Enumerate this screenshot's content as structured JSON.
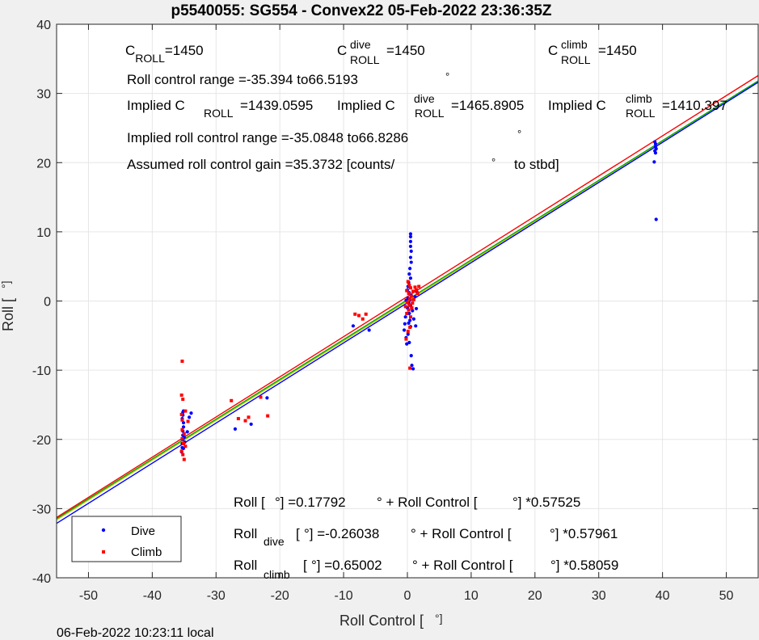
{
  "title": "p5540055: SG554 - Convex22 05-Feb-2022 23:36:35Z",
  "footer": "06-Feb-2022 10:23:11 local",
  "chart_data": {
    "type": "scatter",
    "title": "p5540055: SG554 - Convex22 05-Feb-2022 23:36:35Z",
    "xlabel": "Roll Control [",
    "xlabel_unit": "°]",
    "ylabel": "Roll [",
    "ylabel_unit": "°]",
    "xlim": [
      -55,
      55
    ],
    "ylim": [
      -40,
      40
    ],
    "xticks": [
      -50,
      -40,
      -30,
      -20,
      -10,
      0,
      10,
      20,
      30,
      40,
      50
    ],
    "yticks": [
      -40,
      -30,
      -20,
      -10,
      0,
      10,
      20,
      30,
      40
    ],
    "grid": true,
    "legend": {
      "position": "bottom-left",
      "entries": [
        "Dive",
        "Climb"
      ]
    },
    "colors": {
      "dive": "#0000ff",
      "climb": "#ff0000",
      "all_fit": "#00aa00"
    },
    "series": [
      {
        "name": "Dive",
        "color": "#0000ff",
        "points": [
          [
            -35.4,
            -21.8
          ],
          [
            -35.3,
            -21.2
          ],
          [
            -35.3,
            -20.6
          ],
          [
            -35.2,
            -20.0
          ],
          [
            -35.2,
            -19.4
          ],
          [
            -35.2,
            -18.8
          ],
          [
            -35.1,
            -18.2
          ],
          [
            -35.1,
            -17.6
          ],
          [
            -35.3,
            -17.0
          ],
          [
            -35.2,
            -16.5
          ],
          [
            -35.2,
            -16.1
          ],
          [
            -35.1,
            -15.9
          ],
          [
            -35.0,
            -19.7
          ],
          [
            -35.1,
            -21.3
          ],
          [
            -34.9,
            -20.4
          ],
          [
            -34.5,
            -18.9
          ],
          [
            -34.2,
            -16.8
          ],
          [
            -33.9,
            -16.2
          ],
          [
            -27.0,
            -18.5
          ],
          [
            -24.5,
            -17.8
          ],
          [
            -22.0,
            -14.0
          ],
          [
            -8.5,
            -3.6
          ],
          [
            -6.0,
            -4.2
          ],
          [
            0.5,
            9.7
          ],
          [
            0.5,
            9.3
          ],
          [
            0.5,
            8.6
          ],
          [
            0.5,
            7.9
          ],
          [
            0.6,
            7.2
          ],
          [
            0.5,
            6.3
          ],
          [
            0.6,
            5.6
          ],
          [
            0.4,
            4.7
          ],
          [
            0.3,
            3.9
          ],
          [
            0.5,
            3.3
          ],
          [
            0.2,
            2.7
          ],
          [
            0.1,
            2.1
          ],
          [
            0.0,
            1.6
          ],
          [
            0.3,
            1.2
          ],
          [
            0.6,
            0.8
          ],
          [
            0.1,
            0.4
          ],
          [
            -0.2,
            0.1
          ],
          [
            0.2,
            -0.3
          ],
          [
            0.5,
            -0.7
          ],
          [
            0.0,
            -1.0
          ],
          [
            0.8,
            -1.4
          ],
          [
            0.3,
            -1.8
          ],
          [
            -0.3,
            -2.3
          ],
          [
            0.4,
            -2.8
          ],
          [
            0.2,
            -3.2
          ],
          [
            0.5,
            -3.7
          ],
          [
            -0.4,
            -3.3
          ],
          [
            -0.5,
            -4.2
          ],
          [
            0.1,
            -4.8
          ],
          [
            -0.2,
            -5.3
          ],
          [
            0.3,
            -6.0
          ],
          [
            -0.1,
            -6.2
          ],
          [
            0.6,
            -7.9
          ],
          [
            0.7,
            -9.3
          ],
          [
            0.9,
            -9.8
          ],
          [
            1.3,
            -3.6
          ],
          [
            1.0,
            -2.6
          ],
          [
            1.4,
            -1.1
          ],
          [
            1.2,
            0.6
          ],
          [
            1.5,
            1.3
          ],
          [
            38.8,
            23.0
          ],
          [
            38.9,
            22.7
          ],
          [
            38.9,
            22.3
          ],
          [
            39.0,
            22.0
          ],
          [
            38.8,
            21.7
          ],
          [
            38.9,
            21.4
          ],
          [
            38.7,
            20.1
          ],
          [
            39.0,
            11.8
          ]
        ]
      },
      {
        "name": "Climb",
        "color": "#ff0000",
        "points": [
          [
            -35.3,
            -8.7
          ],
          [
            -35.4,
            -13.6
          ],
          [
            -35.2,
            -14.2
          ],
          [
            -34.8,
            -15.9
          ],
          [
            -35.4,
            -16.4
          ],
          [
            -35.3,
            -17.2
          ],
          [
            -34.4,
            -17.4
          ],
          [
            -35.3,
            -18.6
          ],
          [
            -35.0,
            -19.2
          ],
          [
            -35.3,
            -19.9
          ],
          [
            -35.1,
            -20.6
          ],
          [
            -34.8,
            -21.0
          ],
          [
            -35.4,
            -21.7
          ],
          [
            -35.2,
            -22.2
          ],
          [
            -35.0,
            -22.9
          ],
          [
            -27.6,
            -14.4
          ],
          [
            -26.5,
            -17.0
          ],
          [
            -25.4,
            -17.3
          ],
          [
            -24.9,
            -16.8
          ],
          [
            -23.0,
            -13.9
          ],
          [
            -21.9,
            -16.6
          ],
          [
            -8.2,
            -1.9
          ],
          [
            -7.6,
            -2.1
          ],
          [
            -7.0,
            -2.6
          ],
          [
            -6.5,
            -1.9
          ],
          [
            0.1,
            2.8
          ],
          [
            0.3,
            2.3
          ],
          [
            0.5,
            1.9
          ],
          [
            -0.1,
            1.5
          ],
          [
            0.2,
            1.1
          ],
          [
            0.6,
            0.7
          ],
          [
            0.9,
            1.4
          ],
          [
            1.2,
            2.0
          ],
          [
            1.4,
            1.6
          ],
          [
            1.6,
            1.1
          ],
          [
            1.8,
            2.1
          ],
          [
            0.4,
            0.3
          ],
          [
            0.0,
            -0.2
          ],
          [
            0.3,
            -0.6
          ],
          [
            0.7,
            -1.0
          ],
          [
            0.2,
            -1.3
          ],
          [
            -0.3,
            -0.8
          ],
          [
            -0.1,
            -1.8
          ],
          [
            0.5,
            -2.3
          ],
          [
            0.4,
            -3.8
          ],
          [
            0.1,
            -4.4
          ],
          [
            -0.2,
            -5.5
          ],
          [
            0.4,
            -9.7
          ],
          [
            1.0,
            0.2
          ],
          [
            0.8,
            -0.3
          ]
        ]
      }
    ],
    "fit_lines": [
      {
        "name": "Roll",
        "color": "#00aa00",
        "offset": 0.17792,
        "gain": 0.57525
      },
      {
        "name": "Roll dive",
        "color": "#0000ff",
        "offset": -0.26038,
        "gain": 0.57961
      },
      {
        "name": "Roll climb",
        "color": "#ff0000",
        "offset": 0.65002,
        "gain": 0.58059
      }
    ],
    "reference_line": {
      "color": "#c8c800",
      "offset": 0,
      "gain": 0.575
    },
    "annotations": {
      "c_roll": {
        "prefix": "C",
        "sub": "ROLL",
        "value": "=1450"
      },
      "c_roll_dive": {
        "prefix": "C",
        "sup": "dive",
        "sub": "ROLL",
        "value": "=1450"
      },
      "c_roll_climb": {
        "prefix": "C",
        "sup": "climb",
        "sub": "ROLL",
        "value": "=1450"
      },
      "range": "Roll control range =-35.394 to66.5193",
      "range_deg": "°",
      "implied_1_pre": "Implied C",
      "implied_1_sub": "ROLL",
      "implied_1_val": "=1439.0595",
      "implied_2_pre": "Implied C",
      "implied_2_sup": "dive",
      "implied_2_sub": "ROLL",
      "implied_2_val": "=1465.8905",
      "implied_3_pre": "Implied C",
      "implied_3_sup": "climb",
      "implied_3_sub": "ROLL",
      "implied_3_val": "=1410.397",
      "implied_range": "Implied roll control range =-35.0848 to66.8286",
      "implied_range_deg": "°",
      "gain": "Assumed roll control gain =35.3732 [counts/",
      "gain_deg": "°",
      "gain_tail": "to stbd]",
      "eq1_a": "Roll [",
      "eq1_b": "°] =0.17792",
      "eq1_c": "° + Roll Control [",
      "eq1_d": "°] *0.57525",
      "eq2_a": "Roll",
      "eq2_sub": "dive",
      "eq2_b": "[",
      "eq2_c": "°] =-0.26038",
      "eq2_d": "° + Roll Control [",
      "eq2_e": "°] *0.57961",
      "eq3_a": "Roll",
      "eq3_sub": "climb",
      "eq3_b": "[",
      "eq3_c": "°] =0.65002",
      "eq3_d": "° + Roll Control [",
      "eq3_e": "°] *0.58059"
    }
  }
}
